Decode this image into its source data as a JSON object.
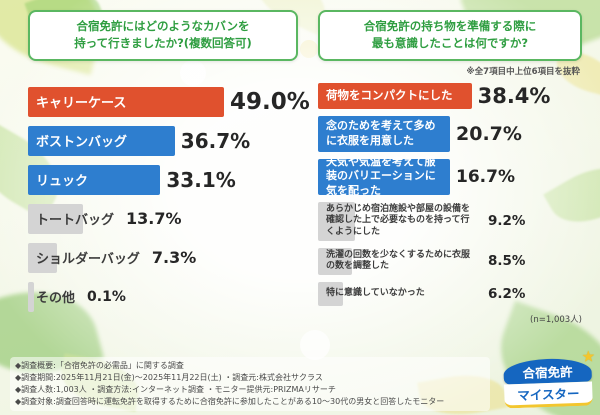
{
  "left_chart": {
    "title_lines": [
      "合宿免許にはどのようなカバンを",
      "持って行きましたか?(複数回答可)"
    ],
    "items": [
      {
        "label": "キャリーケース",
        "value": "49.0%",
        "pct": 49.0,
        "color": "accent"
      },
      {
        "label": "ボストンバッグ",
        "value": "36.7%",
        "pct": 36.7,
        "color": "blue"
      },
      {
        "label": "リュック",
        "value": "33.1%",
        "pct": 33.1,
        "color": "blue"
      },
      {
        "label": "トートバッグ",
        "value": "13.7%",
        "pct": 13.7,
        "color": "gray"
      },
      {
        "label": "ショルダーバッグ",
        "value": "7.3%",
        "pct": 7.3,
        "color": "gray"
      },
      {
        "label": "その他",
        "value": "0.1%",
        "pct": 0.1,
        "color": "gray"
      }
    ]
  },
  "right_chart": {
    "title_lines": [
      "合宿免許の持ち物を準備する際に",
      "最も意識したことは何ですか?"
    ],
    "note": "※全7項目中上位6項目を抜粋",
    "sample_size": "(n=1,003人)",
    "items": [
      {
        "label": "荷物をコンパクトにした",
        "value": "38.4%",
        "pct": 38.4,
        "color": "accent"
      },
      {
        "label": "念のためを考えて多めに衣服を用意した",
        "value": "20.7%",
        "pct": 20.7,
        "color": "blue"
      },
      {
        "label": "天気や気温を考えて服装のバリエーションに気を配った",
        "value": "16.7%",
        "pct": 16.7,
        "color": "blue"
      },
      {
        "label": "あらかじめ宿泊施設や部屋の設備を確認した上で必要なものを持って行くようにした",
        "value": "9.2%",
        "pct": 9.2,
        "color": "gray"
      },
      {
        "label": "洗濯の回数を少なくするために衣服の数を調整した",
        "value": "8.5%",
        "pct": 8.5,
        "color": "gray"
      },
      {
        "label": "特に意識していなかった",
        "value": "6.2%",
        "pct": 6.2,
        "color": "gray"
      }
    ]
  },
  "footer": {
    "lines": [
      "◆調査概要:「合宿免許の必需品」に関する調査",
      "◆調査期間:2025年11月21日(金)〜2025年11月22日(土) ・調査元:株式会社サクラス",
      "◆調査人数:1,003人 ・調査方法:インターネット調査 ・モニター提供元:PRIZMAリサーチ",
      "◆調査対象:調査回答時に運転免許を取得するために合宿免許に参加したことがある10〜30代の男女と回答したモニター"
    ]
  },
  "logo": {
    "line1": "合宿免許",
    "line2": "マイスター"
  },
  "colors": {
    "accent": "#e0512e",
    "blue": "#2e7ecf",
    "gray": "#d4d4d4",
    "title_green": "#2f9e41",
    "border_green": "#5ab761"
  },
  "chart_data": [
    {
      "type": "bar",
      "orientation": "horizontal",
      "title": "合宿免許にはどのようなカバンを持って行きましたか?(複数回答可)",
      "categories": [
        "キャリーケース",
        "ボストンバッグ",
        "リュック",
        "トートバッグ",
        "ショルダーバッグ",
        "その他"
      ],
      "values": [
        49.0,
        36.7,
        33.1,
        13.7,
        7.3,
        0.1
      ],
      "unit": "%",
      "xlim": [
        0,
        100
      ],
      "legend": false,
      "grid": false
    },
    {
      "type": "bar",
      "orientation": "horizontal",
      "title": "合宿免許の持ち物を準備する際に最も意識したことは何ですか?",
      "subtitle": "※全7項目中上位6項目を抜粋",
      "sample": "n=1,003人",
      "categories": [
        "荷物をコンパクトにした",
        "念のためを考えて多めに衣服を用意した",
        "天気や気温を考えて服装のバリエーションに気を配った",
        "あらかじめ宿泊施設や部屋の設備を確認した上で必要なものを持って行くようにした",
        "洗濯の回数を少なくするために衣服の数を調整した",
        "特に意識していなかった"
      ],
      "values": [
        38.4,
        20.7,
        16.7,
        9.2,
        8.5,
        6.2
      ],
      "unit": "%",
      "xlim": [
        0,
        100
      ],
      "legend": false,
      "grid": false
    }
  ]
}
